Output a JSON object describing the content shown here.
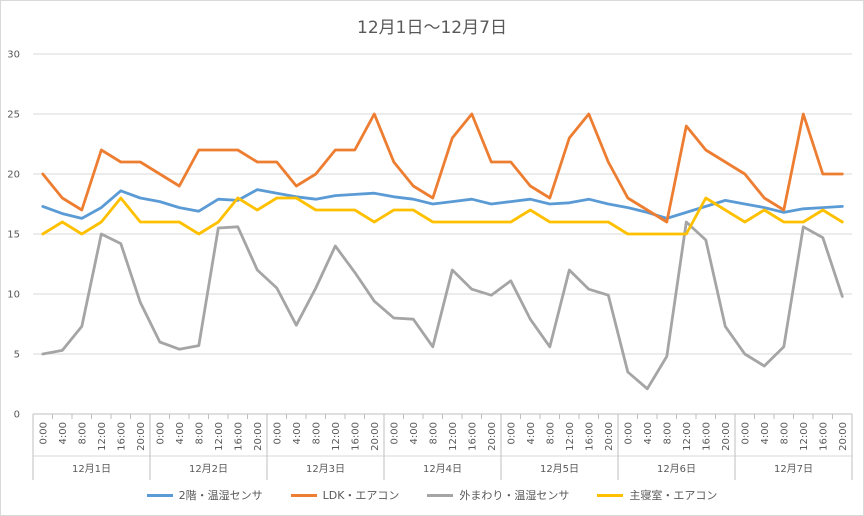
{
  "chart_data": {
    "type": "line",
    "title": "12月1日～12月7日",
    "xlabel": "",
    "ylabel": "",
    "ylim": [
      0,
      30
    ],
    "y_ticks": [
      0,
      5,
      10,
      15,
      20,
      25,
      30
    ],
    "grid": true,
    "legend_position": "bottom",
    "hours": [
      "0:00",
      "4:00",
      "8:00",
      "12:00",
      "16:00",
      "20:00"
    ],
    "days": [
      "12月1日",
      "12月2日",
      "12月3日",
      "12月4日",
      "12月5日",
      "12月6日",
      "12月7日"
    ],
    "series": [
      {
        "name": "2階・温湿センサ",
        "color": "#5b9bd5",
        "values": [
          17.3,
          16.7,
          16.3,
          17.2,
          18.6,
          18.0,
          17.7,
          17.2,
          16.9,
          17.9,
          17.8,
          18.7,
          18.4,
          18.1,
          17.9,
          18.2,
          18.3,
          18.4,
          18.1,
          17.9,
          17.5,
          17.7,
          17.9,
          17.5,
          17.7,
          17.9,
          17.5,
          17.6,
          17.9,
          17.5,
          17.2,
          16.8,
          16.3,
          16.8,
          17.3,
          17.8,
          17.5,
          17.2,
          16.8,
          17.1,
          17.2,
          17.3
        ]
      },
      {
        "name": "LDK・エアコン",
        "color": "#ed7d31",
        "values": [
          20,
          18,
          17,
          22,
          21,
          21,
          20,
          19,
          22,
          22,
          22,
          21,
          21,
          19,
          20,
          22,
          22,
          25,
          21,
          19,
          18,
          23,
          25,
          21,
          21,
          19,
          18,
          23,
          25,
          21,
          18,
          17,
          16,
          24,
          22,
          21,
          20,
          18,
          17,
          25,
          20,
          20
        ]
      },
      {
        "name": "外まわり・温湿センサ",
        "color": "#a5a5a5",
        "values": [
          5,
          5.3,
          7.3,
          15,
          14.2,
          9.3,
          6,
          5.4,
          5.7,
          15.5,
          15.6,
          12,
          10.5,
          7.4,
          10.5,
          14,
          11.8,
          9.4,
          8,
          7.9,
          5.6,
          12,
          10.4,
          9.9,
          11.1,
          7.9,
          5.6,
          12,
          10.4,
          9.9,
          3.5,
          2.1,
          4.8,
          16,
          14.5,
          7.3,
          5,
          4,
          5.6,
          15.6,
          14.7,
          9.8
        ]
      },
      {
        "name": "主寝室・エアコン",
        "color": "#ffc000",
        "values": [
          15,
          16,
          15,
          16,
          18,
          16,
          16,
          16,
          15,
          16,
          18,
          17,
          18,
          18,
          17,
          17,
          17,
          16,
          17,
          17,
          16,
          16,
          16,
          16,
          16,
          17,
          16,
          16,
          16,
          16,
          15,
          15,
          15,
          15,
          18,
          17,
          16,
          17,
          16,
          16,
          17,
          16
        ]
      }
    ]
  }
}
